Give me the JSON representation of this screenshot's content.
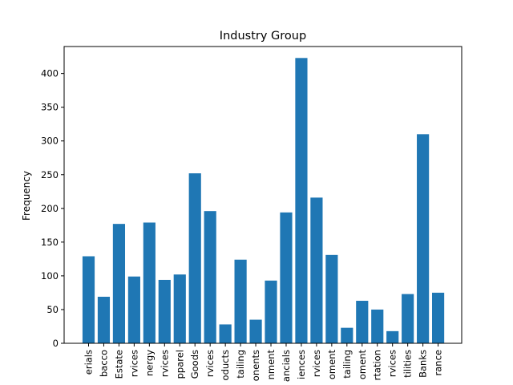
{
  "chart_data": {
    "type": "bar",
    "title": "Industry Group",
    "xlabel": "",
    "ylabel": "Frequency",
    "ylim": [
      0,
      440
    ],
    "yticks": [
      0,
      50,
      100,
      150,
      200,
      250,
      300,
      350,
      400
    ],
    "grid": false,
    "bar_color": "#1f77b4",
    "categories": [
      "erials",
      "bacco",
      "Estate",
      "rvices",
      "nergy",
      "rvices",
      "pparel",
      "Goods",
      "rvices",
      "oducts",
      "tailing",
      "onents",
      "nment",
      "ancials",
      "iences",
      "rvices",
      "oment",
      "tailing",
      "oment",
      "rtation",
      "rvices",
      "tilities",
      "Banks",
      "rance"
    ],
    "values": [
      129,
      69,
      177,
      99,
      179,
      94,
      102,
      252,
      196,
      28,
      124,
      35,
      93,
      194,
      423,
      216,
      131,
      23,
      63,
      50,
      18,
      73,
      310,
      75
    ]
  }
}
